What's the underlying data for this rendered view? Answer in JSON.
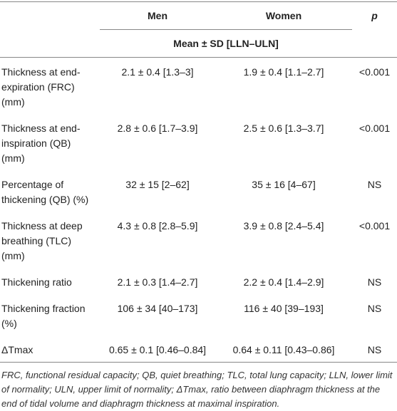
{
  "table": {
    "header": [
      "Men",
      "Women",
      "p"
    ],
    "subheader": "Mean ± SD [LLN–ULN]",
    "rows": [
      [
        "Thickness at end-expiration (FRC) (mm)",
        "2.1 ± 0.4 [1.3–3]",
        "1.9 ± 0.4 [1.1–2.7]",
        "<0.001"
      ],
      [
        "Thickness at end-inspiration (QB) (mm)",
        "2.8 ± 0.6 [1.7–3.9]",
        "2.5 ± 0.6 [1.3–3.7]",
        "<0.001"
      ],
      [
        "Percentage of thickening (QB) (%)",
        "32 ± 15 [2–62]",
        "35 ± 16 [4–67]",
        "NS"
      ],
      [
        "Thickness at deep breathing (TLC) (mm)",
        "4.3 ± 0.8 [2.8–5.9]",
        "3.9 ± 0.8 [2.4–5.4]",
        "<0.001"
      ],
      [
        "Thickening ratio",
        "2.1 ± 0.3 [1.4–2.7]",
        "2.2 ± 0.4 [1.4–2.9]",
        "NS"
      ],
      [
        "Thickening fraction (%)",
        "106 ± 34 [40–173]",
        "116 ± 40 [39–193]",
        "NS"
      ],
      [
        "ΔTmax",
        "0.65 ± 0.1 [0.46–0.84]",
        "0.64 ± 0.11 [0.43–0.86]",
        "NS"
      ]
    ],
    "footnote": "FRC, functional residual capacity; QB, quiet breathing; TLC, total lung capacity; LLN, lower limit of normality; ULN, upper limit of normality; ΔTmax, ratio between diaphragm thickness at the end of tidal volume and diaphragm thickness at maximal inspiration."
  }
}
